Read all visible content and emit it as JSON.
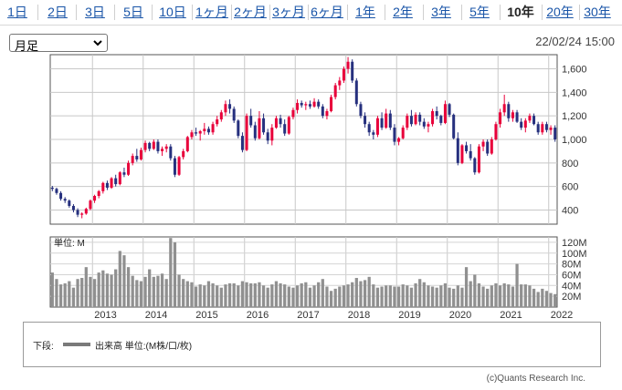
{
  "tabs": [
    {
      "label": "1日",
      "active": false
    },
    {
      "label": "2日",
      "active": false
    },
    {
      "label": "3日",
      "active": false
    },
    {
      "label": "5日",
      "active": false
    },
    {
      "label": "10日",
      "active": false
    },
    {
      "label": "1ヶ月",
      "active": false
    },
    {
      "label": "2ヶ月",
      "active": false
    },
    {
      "label": "3ヶ月",
      "active": false
    },
    {
      "label": "6ヶ月",
      "active": false
    },
    {
      "label": "1年",
      "active": false
    },
    {
      "label": "2年",
      "active": false
    },
    {
      "label": "3年",
      "active": false
    },
    {
      "label": "5年",
      "active": false
    },
    {
      "label": "10年",
      "active": true
    },
    {
      "label": "20年",
      "active": false
    },
    {
      "label": "30年",
      "active": false
    }
  ],
  "period_select": {
    "value": "月足",
    "icon": "chevron-down-icon"
  },
  "datetime": "22/02/24 15:00",
  "legend": {
    "prefix": "下段:",
    "item": "出来高 単位:(M株/口/枚)"
  },
  "copyright": "(c)Quants Research Inc.",
  "colors": {
    "up": "#e8003a",
    "down": "#26307e",
    "volume": "#909090",
    "link": "#1a55a8"
  },
  "chart_data": [
    {
      "type": "candlestick",
      "ylim": [
        280,
        1720
      ],
      "yticks": [
        400,
        600,
        800,
        1000,
        1200,
        1400,
        1600
      ],
      "ytick_labels": [
        "400",
        "600",
        "800",
        "1,000",
        "1,200",
        "1,400",
        "1,600"
      ],
      "x_start": "2012-03",
      "x_end": "2022-02",
      "year_labels": [
        "2013",
        "2014",
        "2015",
        "2016",
        "2017",
        "2018",
        "2019",
        "2020",
        "2021",
        "2022"
      ],
      "ohlc": [
        [
          590,
          605,
          560,
          580
        ],
        [
          580,
          590,
          530,
          545
        ],
        [
          545,
          560,
          480,
          495
        ],
        [
          495,
          510,
          460,
          480
        ],
        [
          480,
          490,
          420,
          435
        ],
        [
          435,
          450,
          380,
          400
        ],
        [
          400,
          415,
          340,
          360
        ],
        [
          360,
          380,
          330,
          370
        ],
        [
          370,
          420,
          360,
          410
        ],
        [
          410,
          490,
          400,
          480
        ],
        [
          480,
          530,
          460,
          520
        ],
        [
          520,
          570,
          500,
          560
        ],
        [
          560,
          640,
          540,
          630
        ],
        [
          630,
          650,
          570,
          590
        ],
        [
          590,
          680,
          580,
          670
        ],
        [
          670,
          700,
          600,
          620
        ],
        [
          620,
          730,
          610,
          720
        ],
        [
          720,
          760,
          680,
          700
        ],
        [
          700,
          820,
          690,
          800
        ],
        [
          800,
          880,
          780,
          860
        ],
        [
          860,
          920,
          810,
          830
        ],
        [
          830,
          930,
          820,
          910
        ],
        [
          910,
          990,
          890,
          970
        ],
        [
          970,
          980,
          900,
          920
        ],
        [
          920,
          1000,
          910,
          980
        ],
        [
          980,
          1000,
          880,
          900
        ],
        [
          900,
          940,
          860,
          920
        ],
        [
          920,
          960,
          890,
          940
        ],
        [
          940,
          960,
          820,
          840
        ],
        [
          840,
          860,
          680,
          700
        ],
        [
          700,
          860,
          690,
          850
        ],
        [
          850,
          920,
          830,
          900
        ],
        [
          900,
          1030,
          890,
          1020
        ],
        [
          1020,
          1080,
          1000,
          1060
        ],
        [
          1060,
          1100,
          1030,
          1050
        ],
        [
          1050,
          1080,
          990,
          1070
        ],
        [
          1070,
          1140,
          1040,
          1090
        ],
        [
          1090,
          1110,
          1040,
          1060
        ],
        [
          1060,
          1150,
          1040,
          1130
        ],
        [
          1130,
          1200,
          1110,
          1170
        ],
        [
          1170,
          1250,
          1150,
          1230
        ],
        [
          1230,
          1330,
          1200,
          1300
        ],
        [
          1300,
          1340,
          1220,
          1260
        ],
        [
          1260,
          1280,
          1140,
          1160
        ],
        [
          1160,
          1170,
          1010,
          1030
        ],
        [
          1030,
          1060,
          890,
          910
        ],
        [
          910,
          1220,
          900,
          1200
        ],
        [
          1200,
          1260,
          1100,
          1120
        ],
        [
          1120,
          1150,
          990,
          1010
        ],
        [
          1010,
          1240,
          1000,
          1180
        ],
        [
          1180,
          1220,
          1040,
          1060
        ],
        [
          1060,
          1090,
          960,
          990
        ],
        [
          990,
          1130,
          950,
          1100
        ],
        [
          1100,
          1200,
          1090,
          1180
        ],
        [
          1180,
          1210,
          1100,
          1130
        ],
        [
          1130,
          1170,
          1030,
          1050
        ],
        [
          1050,
          1200,
          1040,
          1190
        ],
        [
          1190,
          1270,
          1170,
          1250
        ],
        [
          1250,
          1340,
          1220,
          1310
        ],
        [
          1310,
          1330,
          1270,
          1290
        ],
        [
          1290,
          1320,
          1250,
          1300
        ],
        [
          1300,
          1330,
          1260,
          1280
        ],
        [
          1280,
          1350,
          1270,
          1320
        ],
        [
          1320,
          1340,
          1260,
          1280
        ],
        [
          1280,
          1300,
          1180,
          1200
        ],
        [
          1200,
          1260,
          1170,
          1240
        ],
        [
          1240,
          1380,
          1230,
          1360
        ],
        [
          1360,
          1480,
          1340,
          1460
        ],
        [
          1460,
          1530,
          1420,
          1500
        ],
        [
          1500,
          1620,
          1480,
          1600
        ],
        [
          1600,
          1700,
          1560,
          1660
        ],
        [
          1660,
          1680,
          1480,
          1500
        ],
        [
          1500,
          1520,
          1280,
          1300
        ],
        [
          1300,
          1320,
          1180,
          1200
        ],
        [
          1200,
          1230,
          1100,
          1130
        ],
        [
          1130,
          1150,
          1030,
          1060
        ],
        [
          1060,
          1080,
          1000,
          1040
        ],
        [
          1040,
          1200,
          1020,
          1180
        ],
        [
          1180,
          1230,
          1080,
          1100
        ],
        [
          1100,
          1260,
          1090,
          1220
        ],
        [
          1220,
          1250,
          1080,
          1100
        ],
        [
          1100,
          1130,
          950,
          980
        ],
        [
          980,
          1020,
          950,
          1010
        ],
        [
          1010,
          1120,
          1000,
          1100
        ],
        [
          1100,
          1220,
          1080,
          1200
        ],
        [
          1200,
          1250,
          1110,
          1130
        ],
        [
          1130,
          1230,
          1120,
          1210
        ],
        [
          1210,
          1230,
          1120,
          1150
        ],
        [
          1150,
          1180,
          1090,
          1110
        ],
        [
          1110,
          1150,
          1060,
          1130
        ],
        [
          1130,
          1260,
          1110,
          1240
        ],
        [
          1240,
          1280,
          1170,
          1200
        ],
        [
          1200,
          1210,
          1120,
          1140
        ],
        [
          1140,
          1330,
          1130,
          1300
        ],
        [
          1300,
          1310,
          1190,
          1210
        ],
        [
          1210,
          1220,
          1000,
          1010
        ],
        [
          1010,
          1060,
          780,
          800
        ],
        [
          800,
          960,
          790,
          950
        ],
        [
          950,
          980,
          880,
          900
        ],
        [
          900,
          960,
          820,
          840
        ],
        [
          840,
          850,
          700,
          720
        ],
        [
          720,
          960,
          710,
          940
        ],
        [
          940,
          1000,
          900,
          980
        ],
        [
          980,
          1000,
          860,
          880
        ],
        [
          880,
          1020,
          870,
          1000
        ],
        [
          1000,
          1150,
          990,
          1130
        ],
        [
          1130,
          1260,
          1100,
          1230
        ],
        [
          1230,
          1380,
          1200,
          1300
        ],
        [
          1300,
          1320,
          1150,
          1180
        ],
        [
          1180,
          1250,
          1150,
          1230
        ],
        [
          1230,
          1250,
          1140,
          1150
        ],
        [
          1150,
          1180,
          1080,
          1100
        ],
        [
          1100,
          1180,
          1060,
          1160
        ],
        [
          1160,
          1220,
          1140,
          1200
        ],
        [
          1200,
          1220,
          1120,
          1130
        ],
        [
          1130,
          1150,
          1040,
          1060
        ],
        [
          1060,
          1150,
          1040,
          1130
        ],
        [
          1130,
          1150,
          1060,
          1080
        ],
        [
          1080,
          1120,
          1040,
          1100
        ],
        [
          1100,
          1120,
          980,
          1000
        ]
      ],
      "title": ""
    },
    {
      "type": "bar",
      "series_name": "出来高",
      "ylabel": "単位: M",
      "ylim": [
        0,
        130
      ],
      "yticks": [
        20,
        40,
        60,
        80,
        100,
        120
      ],
      "ytick_labels": [
        "20M",
        "40M",
        "60M",
        "80M",
        "100M",
        "120M"
      ],
      "values": [
        64,
        52,
        42,
        44,
        48,
        36,
        52,
        54,
        74,
        56,
        52,
        64,
        68,
        62,
        60,
        70,
        104,
        96,
        74,
        58,
        50,
        48,
        56,
        70,
        56,
        58,
        62,
        52,
        128,
        120,
        60,
        52,
        48,
        46,
        38,
        42,
        40,
        48,
        44,
        40,
        36,
        42,
        44,
        44,
        40,
        48,
        46,
        44,
        44,
        46,
        40,
        36,
        42,
        48,
        44,
        42,
        38,
        36,
        40,
        44,
        46,
        36,
        40,
        46,
        52,
        38,
        30,
        34,
        38,
        40,
        42,
        46,
        54,
        48,
        50,
        56,
        42,
        36,
        38,
        40,
        40,
        38,
        38,
        42,
        40,
        36,
        44,
        52,
        46,
        40,
        38,
        36,
        40,
        44,
        36,
        34,
        40,
        36,
        74,
        48,
        60,
        44,
        38,
        34,
        40,
        44,
        40,
        44,
        42,
        38,
        80,
        42,
        42,
        40,
        34,
        28,
        34,
        30,
        26,
        24
      ]
    }
  ]
}
